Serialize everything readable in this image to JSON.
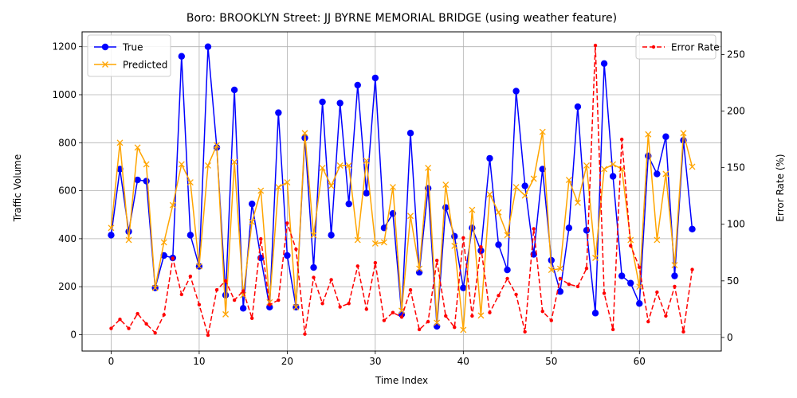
{
  "chart_data": {
    "type": "line",
    "title": "Boro: BROOKLYN Street: JJ BYRNE MEMORIAL BRIDGE (using weather feature)",
    "xlabel": "Time Index",
    "ylabel": "Traffic Volume",
    "y2label": "Error Rate (%)",
    "xlim": [
      -3.3,
      69.3
    ],
    "ylim": [
      -68,
      1262
    ],
    "y2lim": [
      -12,
      270
    ],
    "xticks": [
      0,
      10,
      20,
      30,
      40,
      50,
      60
    ],
    "yticks": [
      0,
      200,
      400,
      600,
      800,
      1000,
      1200
    ],
    "y2ticks": [
      0,
      50,
      100,
      150,
      200,
      250
    ],
    "grid": true,
    "legend_left": {
      "placement": "upper left",
      "entries": [
        "True",
        "Predicted"
      ]
    },
    "legend_right": {
      "placement": "upper right",
      "entries": [
        "Error Rate"
      ]
    },
    "colors": {
      "true": "#0000ff",
      "predicted": "#ffa500",
      "error": "#ff0000",
      "grid": "#b0b0b0"
    },
    "x": [
      0,
      1,
      2,
      3,
      4,
      5,
      6,
      7,
      8,
      9,
      10,
      11,
      12,
      13,
      14,
      15,
      16,
      17,
      18,
      19,
      20,
      21,
      22,
      23,
      24,
      25,
      26,
      27,
      28,
      29,
      30,
      31,
      32,
      33,
      34,
      35,
      36,
      37,
      38,
      39,
      40,
      41,
      42,
      43,
      44,
      45,
      46,
      47,
      48,
      49,
      50,
      51,
      52,
      53,
      54,
      55,
      56,
      57,
      58,
      59,
      60,
      61,
      62,
      63,
      64,
      65,
      66
    ],
    "series": [
      {
        "name": "True",
        "axis": "left",
        "marker": "o",
        "style": "solid",
        "values": [
          415,
          690,
          430,
          645,
          640,
          195,
          330,
          320,
          1160,
          415,
          285,
          1200,
          780,
          165,
          1020,
          110,
          545,
          320,
          115,
          925,
          330,
          115,
          820,
          280,
          970,
          415,
          965,
          545,
          1040,
          590,
          1070,
          445,
          505,
          85,
          840,
          260,
          610,
          35,
          530,
          410,
          195,
          445,
          350,
          735,
          375,
          270,
          1015,
          620,
          335,
          690,
          310,
          180,
          445,
          950,
          435,
          90,
          1130,
          660,
          245,
          215,
          130,
          745,
          670,
          825,
          245,
          810,
          440
        ]
      },
      {
        "name": "Predicted",
        "axis": "left",
        "marker": "x",
        "style": "solid",
        "values": [
          445,
          800,
          395,
          780,
          710,
          195,
          385,
          540,
          710,
          635,
          285,
          705,
          790,
          85,
          720,
          165,
          470,
          600,
          135,
          615,
          635,
          115,
          840,
          415,
          695,
          620,
          705,
          705,
          395,
          725,
          380,
          385,
          615,
          100,
          495,
          275,
          695,
          50,
          625,
          370,
          20,
          520,
          80,
          585,
          510,
          415,
          615,
          580,
          650,
          845,
          270,
          275,
          645,
          550,
          705,
          320,
          690,
          710,
          690,
          395,
          200,
          835,
          395,
          670,
          290,
          840,
          700
        ]
      },
      {
        "name": "Error Rate",
        "axis": "right",
        "marker": ".",
        "style": "dashed",
        "values": [
          8,
          16,
          8,
          21,
          12,
          4,
          20,
          70,
          38,
          54,
          29,
          2,
          42,
          50,
          33,
          41,
          17,
          87,
          29,
          33,
          101,
          78,
          3,
          53,
          30,
          51,
          27,
          30,
          63,
          25,
          66,
          15,
          22,
          18,
          42,
          7,
          14,
          68,
          19,
          9,
          88,
          19,
          80,
          22,
          37,
          52,
          38,
          5,
          96,
          23,
          15,
          52,
          47,
          45,
          61,
          258,
          39,
          7,
          175,
          81,
          62,
          14,
          40,
          19,
          45,
          5,
          60
        ]
      }
    ]
  }
}
